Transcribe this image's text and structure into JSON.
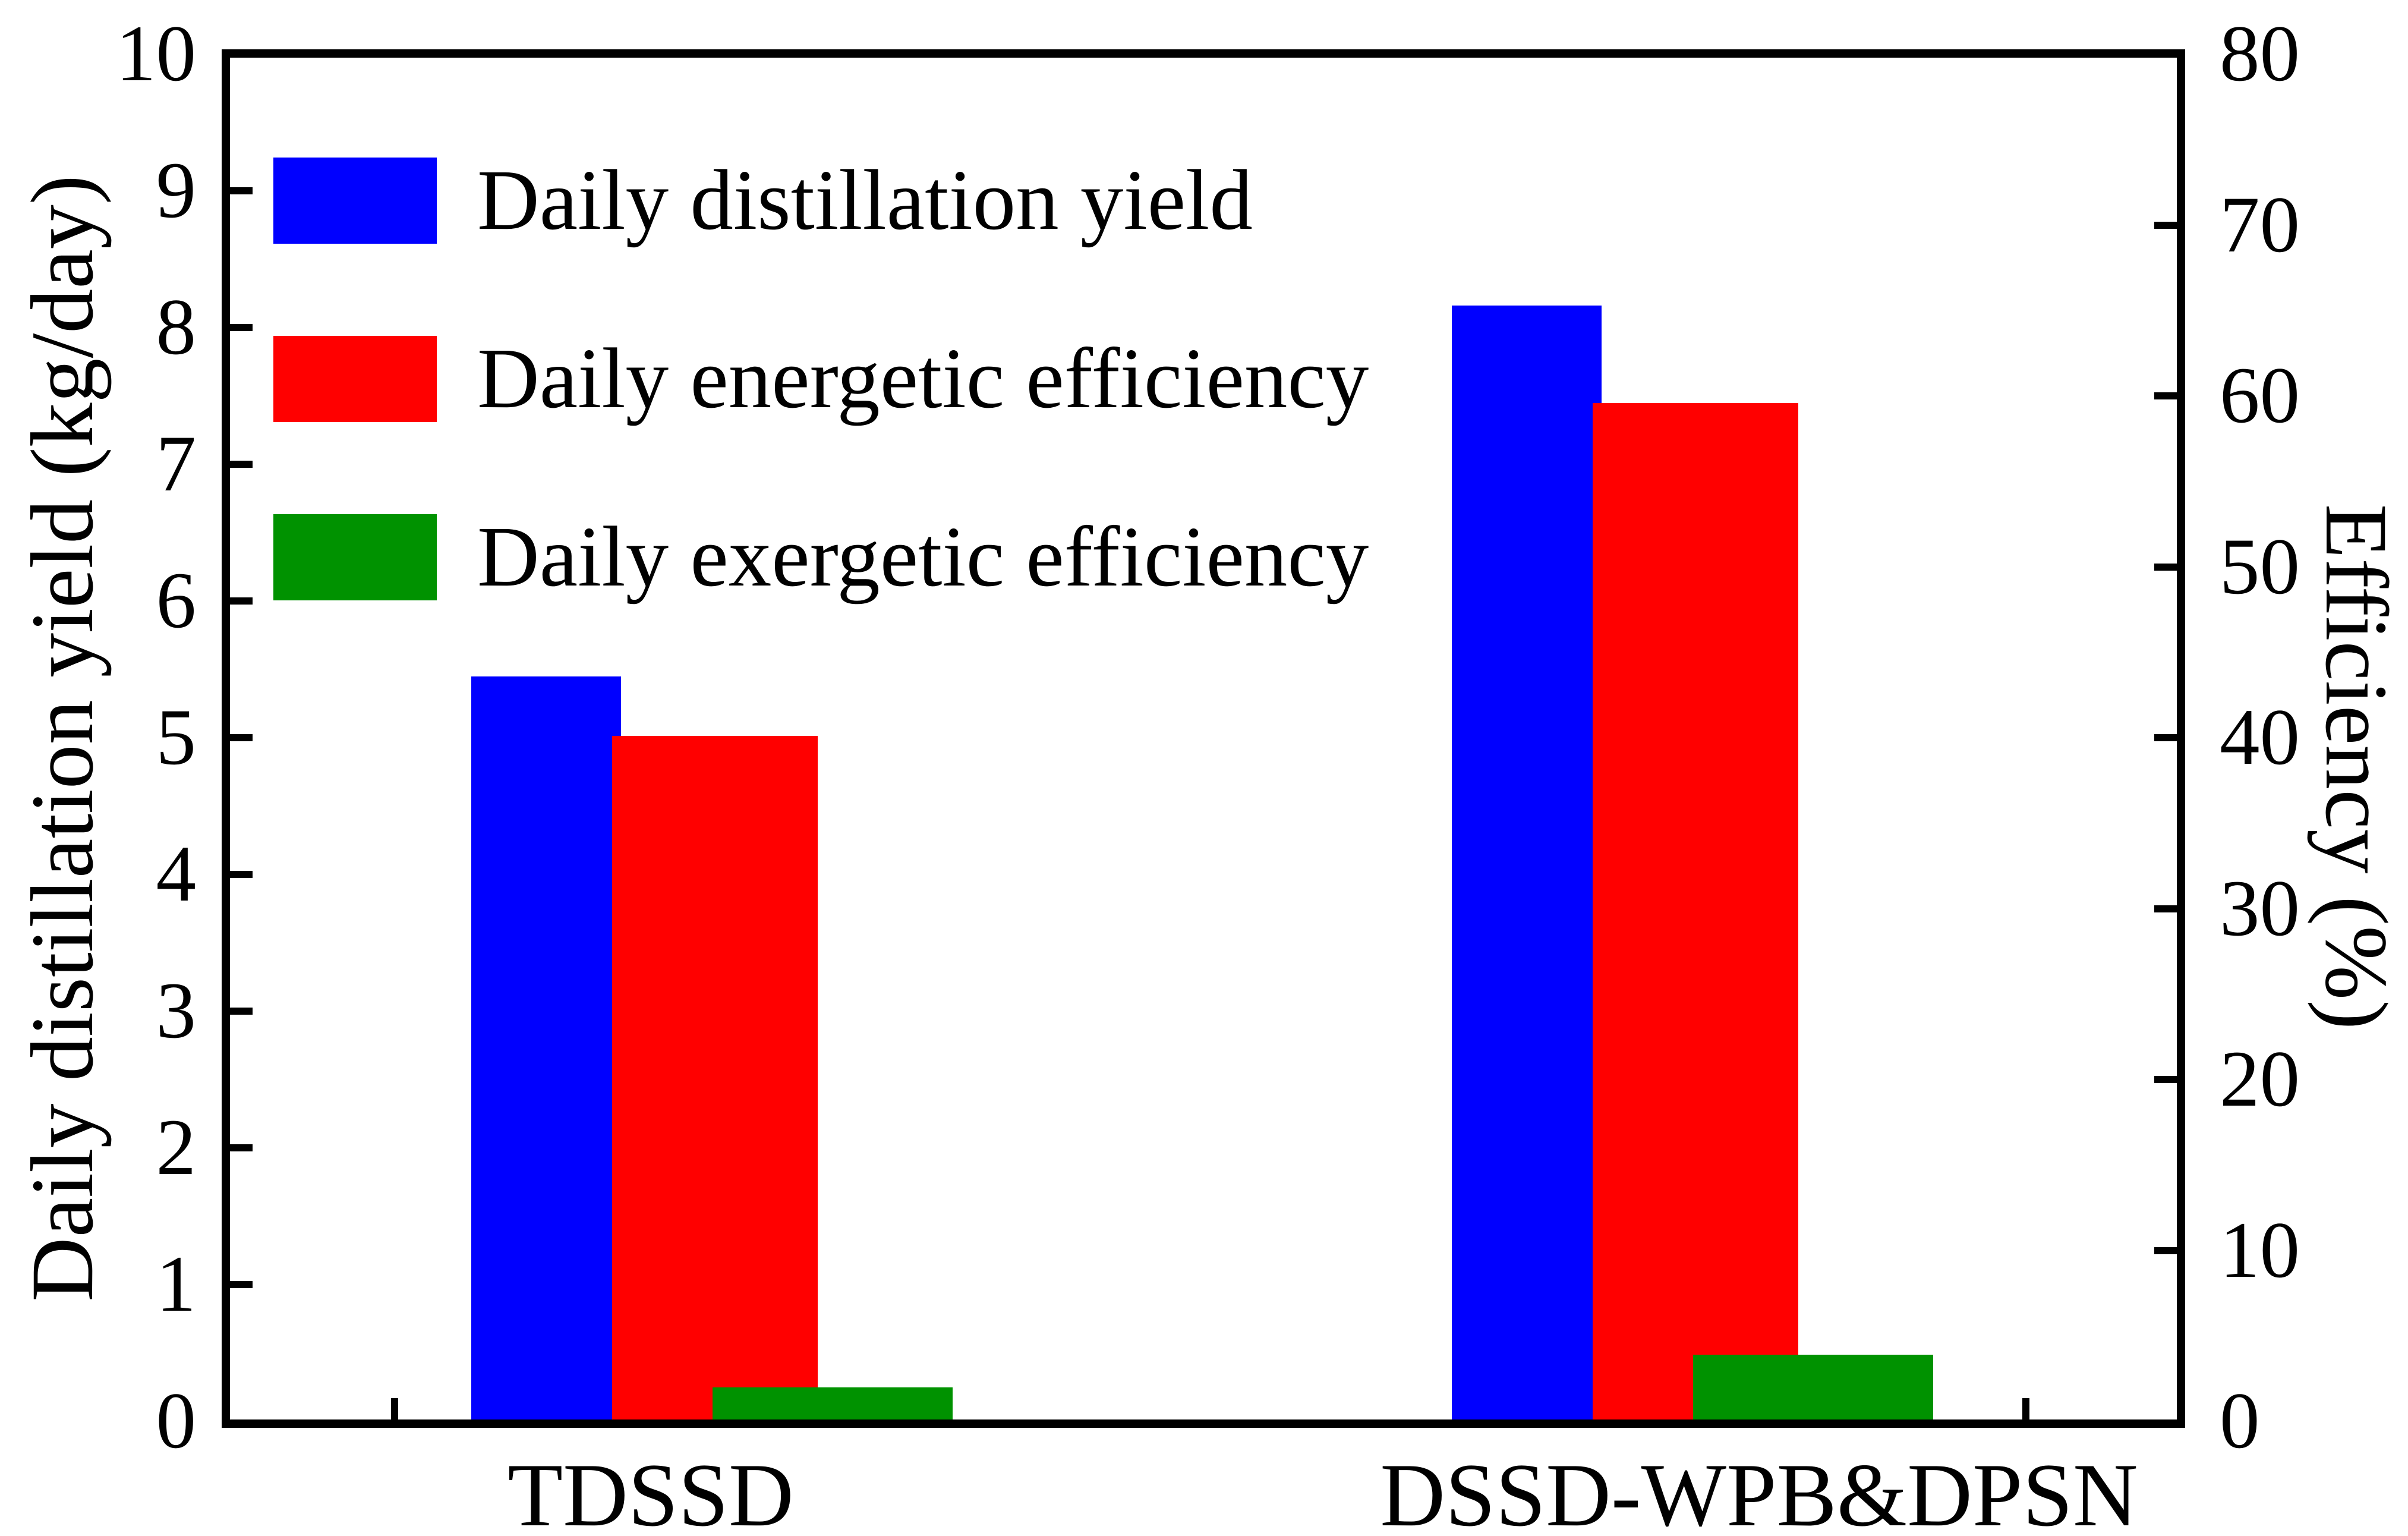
{
  "figure": {
    "left_axis_title": "Daily distillation yield (kg/day)",
    "right_axis_title": "Efficiency (%)"
  },
  "chart_data": {
    "type": "bar",
    "title": "",
    "categories": [
      "TDSSD",
      "DSSD-WPB&DPSN"
    ],
    "series": [
      {
        "name": "Daily distillation yield",
        "axis": "left",
        "unit": "kg/day",
        "color": "#0000ff",
        "values": [
          5.45,
          8.16
        ]
      },
      {
        "name": "Daily energetic efficiency",
        "axis": "right",
        "unit": "%",
        "color": "#ff0000",
        "values": [
          40.1,
          59.6
        ]
      },
      {
        "name": "Daily exergetic efficiency",
        "axis": "right",
        "unit": "%",
        "color": "#009200",
        "values": [
          2.0,
          3.9
        ]
      }
    ],
    "left_axis": {
      "label": "Daily distillation yield (kg/day)",
      "min": 0,
      "max": 10,
      "ticks": [
        0,
        1,
        2,
        3,
        4,
        5,
        6,
        7,
        8,
        9,
        10
      ]
    },
    "right_axis": {
      "label": "Efficiency (%)",
      "min": 0,
      "max": 80,
      "ticks": [
        0,
        10,
        20,
        30,
        40,
        50,
        60,
        70,
        80
      ]
    },
    "legend": {
      "position": "top-left",
      "entries": [
        "Daily distillation yield",
        "Daily energetic efficiency",
        "Daily exergetic efficiency"
      ]
    },
    "grid": false
  }
}
